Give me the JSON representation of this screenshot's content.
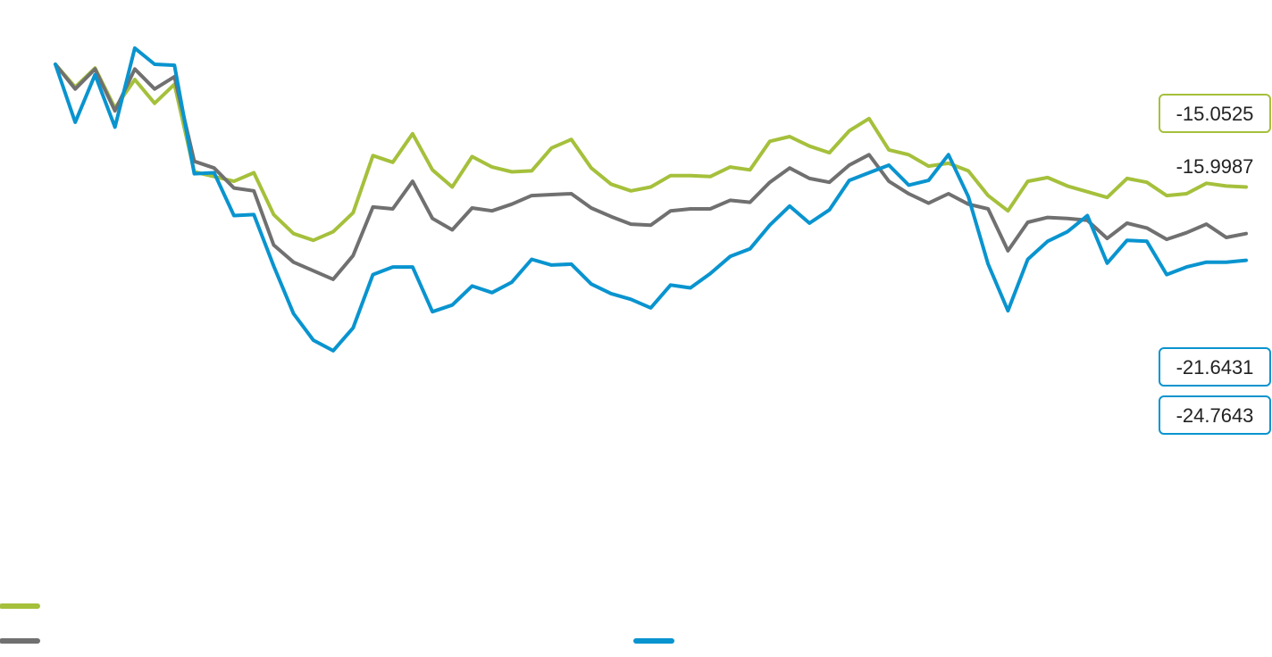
{
  "chart_data": {
    "type": "line",
    "title": "",
    "xlabel": "",
    "ylabel": "",
    "grid": false,
    "legend_position": "bottom",
    "x_points": 62,
    "ylim": [
      -40,
      4
    ],
    "series": [
      {
        "color": "#a5c03b",
        "end_value": "-15.0525",
        "end_label_boxed": true,
        "values": [
          0.0,
          -2.4,
          -0.4,
          -4.6,
          -1.6,
          -4.1,
          -2.1,
          -11.3,
          -11.8,
          -12.3,
          -11.4,
          -15.8,
          -17.8,
          -18.5,
          -17.6,
          -15.6,
          -9.6,
          -10.3,
          -7.3,
          -11.1,
          -12.9,
          -9.7,
          -10.8,
          -11.3,
          -11.2,
          -8.8,
          -7.9,
          -10.9,
          -12.6,
          -13.3,
          -12.9,
          -11.7,
          -11.7,
          -11.8,
          -10.8,
          -11.1,
          -8.1,
          -7.6,
          -8.6,
          -9.3,
          -7.0,
          -5.7,
          -9.0,
          -9.5,
          -10.7,
          -10.4,
          -11.2,
          -13.8,
          -15.4,
          -12.3,
          -11.9,
          -12.8,
          -13.4,
          -14.0,
          -12.0,
          -12.4,
          -13.8,
          -13.6,
          -12.5,
          -12.8,
          -12.9
        ]
      },
      {
        "color": "#707070",
        "end_value": "-15.9987",
        "end_label_boxed": false,
        "values": [
          0.0,
          -2.6,
          -0.5,
          -4.9,
          -0.5,
          -2.6,
          -1.3,
          -10.2,
          -10.9,
          -13.0,
          -13.3,
          -19.0,
          -20.8,
          -21.7,
          -22.6,
          -20.1,
          -15.0,
          -15.2,
          -12.3,
          -16.2,
          -17.4,
          -15.1,
          -15.4,
          -14.7,
          -13.8,
          -13.7,
          -13.6,
          -15.1,
          -16.0,
          -16.8,
          -16.9,
          -15.4,
          -15.2,
          -15.2,
          -14.3,
          -14.5,
          -12.4,
          -10.9,
          -12.0,
          -12.4,
          -10.6,
          -9.5,
          -12.3,
          -13.6,
          -14.6,
          -13.6,
          -14.7,
          -15.2,
          -19.6,
          -16.6,
          -16.1,
          -16.2,
          -16.4,
          -18.3,
          -16.7,
          -17.2,
          -18.4,
          -17.7,
          -16.8,
          -18.2,
          -17.8
        ]
      },
      {
        "color": "#0994cf",
        "end_value": "-21.6431",
        "end_label_boxed": true,
        "values": [
          0.0,
          -6.1,
          -1.1,
          -6.6,
          1.7,
          0.0,
          -0.1,
          -11.5,
          -11.4,
          -15.9,
          -15.8,
          -21.2,
          -26.2,
          -29.0,
          -30.1,
          -27.7,
          -22.1,
          -21.3,
          -21.3,
          -26.0,
          -25.3,
          -23.3,
          -24.0,
          -22.9,
          -20.5,
          -21.1,
          -21.0,
          -23.1,
          -24.1,
          -24.7,
          -25.6,
          -23.2,
          -23.5,
          -22.0,
          -20.2,
          -19.4,
          -16.9,
          -14.9,
          -16.7,
          -15.3,
          -12.2,
          -11.4,
          -10.6,
          -12.7,
          -12.2,
          -9.5,
          -13.9,
          -21.0,
          -25.9,
          -20.5,
          -18.6,
          -17.6,
          -15.9,
          -20.9,
          -18.5,
          -18.6,
          -22.1,
          -21.3,
          -20.8,
          -20.8,
          -20.6
        ]
      }
    ],
    "extra_label": {
      "value": "-24.7643",
      "color": "#0994cf",
      "boxed": true
    }
  }
}
